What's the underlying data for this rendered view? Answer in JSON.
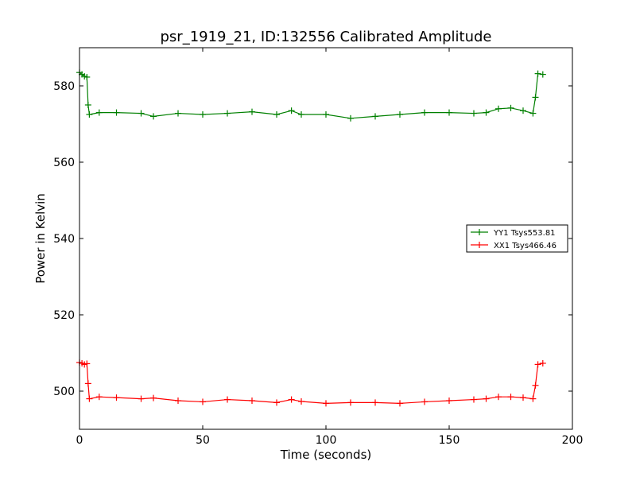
{
  "chart_data": {
    "type": "line",
    "title": "psr_1919_21, ID:132556 Calibrated Amplitude",
    "xlabel": "Time (seconds)",
    "ylabel": "Power in Kelvin",
    "xlim": [
      0,
      200
    ],
    "ylim": [
      490,
      590
    ],
    "xticks": [
      0,
      50,
      100,
      150,
      200
    ],
    "yticks": [
      500,
      520,
      540,
      560,
      580
    ],
    "grid": false,
    "legend_position": "center-right",
    "marker": "+",
    "series": [
      {
        "name": "YY1 Tsys553.81",
        "color": "#008000",
        "x": [
          0,
          1,
          2,
          3,
          3.5,
          4,
          8,
          15,
          25,
          30,
          40,
          50,
          60,
          70,
          80,
          86,
          90,
          100,
          110,
          120,
          130,
          140,
          150,
          160,
          165,
          170,
          175,
          180,
          184,
          185,
          186,
          188
        ],
        "y": [
          583.5,
          583,
          582.5,
          582.3,
          575,
          572.5,
          573,
          573,
          572.8,
          572,
          572.8,
          572.5,
          572.8,
          573.2,
          572.5,
          573.5,
          572.5,
          572.5,
          571.5,
          572,
          572.5,
          573,
          573,
          572.8,
          573,
          574,
          574.2,
          573.5,
          572.8,
          577,
          583.2,
          583
        ]
      },
      {
        "name": "XX1 Tsys466.46",
        "color": "#ff0000",
        "x": [
          0,
          1,
          2,
          3,
          3.5,
          4,
          8,
          15,
          25,
          30,
          40,
          50,
          60,
          70,
          80,
          86,
          90,
          100,
          110,
          120,
          130,
          140,
          150,
          160,
          165,
          170,
          175,
          180,
          184,
          185,
          186,
          188
        ],
        "y": [
          507.5,
          507.3,
          507,
          507.2,
          502,
          498,
          498.5,
          498.3,
          498,
          498.2,
          497.5,
          497.2,
          497.8,
          497.5,
          497,
          497.8,
          497.3,
          496.8,
          497,
          497,
          496.8,
          497.2,
          497.5,
          497.8,
          498,
          498.5,
          498.5,
          498.3,
          498,
          501.5,
          507,
          507.3
        ]
      }
    ]
  }
}
